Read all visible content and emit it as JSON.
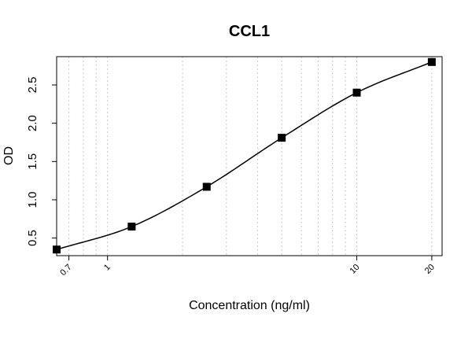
{
  "chart_data": {
    "type": "scatter",
    "title": "CCL1",
    "xlabel": "Concentration (ng/ml)",
    "ylabel": "OD",
    "x_scale": "log",
    "xlim": [
      0.625,
      22
    ],
    "ylim": [
      0.27,
      2.87
    ],
    "x_ticks": [
      0.7,
      1,
      10,
      20
    ],
    "x_tick_labels": [
      "0.7",
      "1",
      "10",
      "20"
    ],
    "y_ticks": [
      0.5,
      1.0,
      1.5,
      2.0,
      2.5
    ],
    "y_tick_labels": [
      "0.5",
      "1.0",
      "1.5",
      "2.0",
      "2.5"
    ],
    "x_gridlines": [
      0.7,
      0.8,
      0.9,
      1,
      2,
      3,
      4,
      5,
      6,
      7,
      8,
      9,
      10,
      20
    ],
    "grid": "vertical dotted",
    "series": [
      {
        "points": [
          {
            "x": 0.625,
            "y": 0.35
          },
          {
            "x": 1.25,
            "y": 0.65
          },
          {
            "x": 2.5,
            "y": 1.17
          },
          {
            "x": 5,
            "y": 1.81
          },
          {
            "x": 10,
            "y": 2.4
          },
          {
            "x": 20,
            "y": 2.8
          }
        ],
        "marker": "filled-square",
        "curve": "fitted-line",
        "color": "#000000"
      }
    ]
  }
}
